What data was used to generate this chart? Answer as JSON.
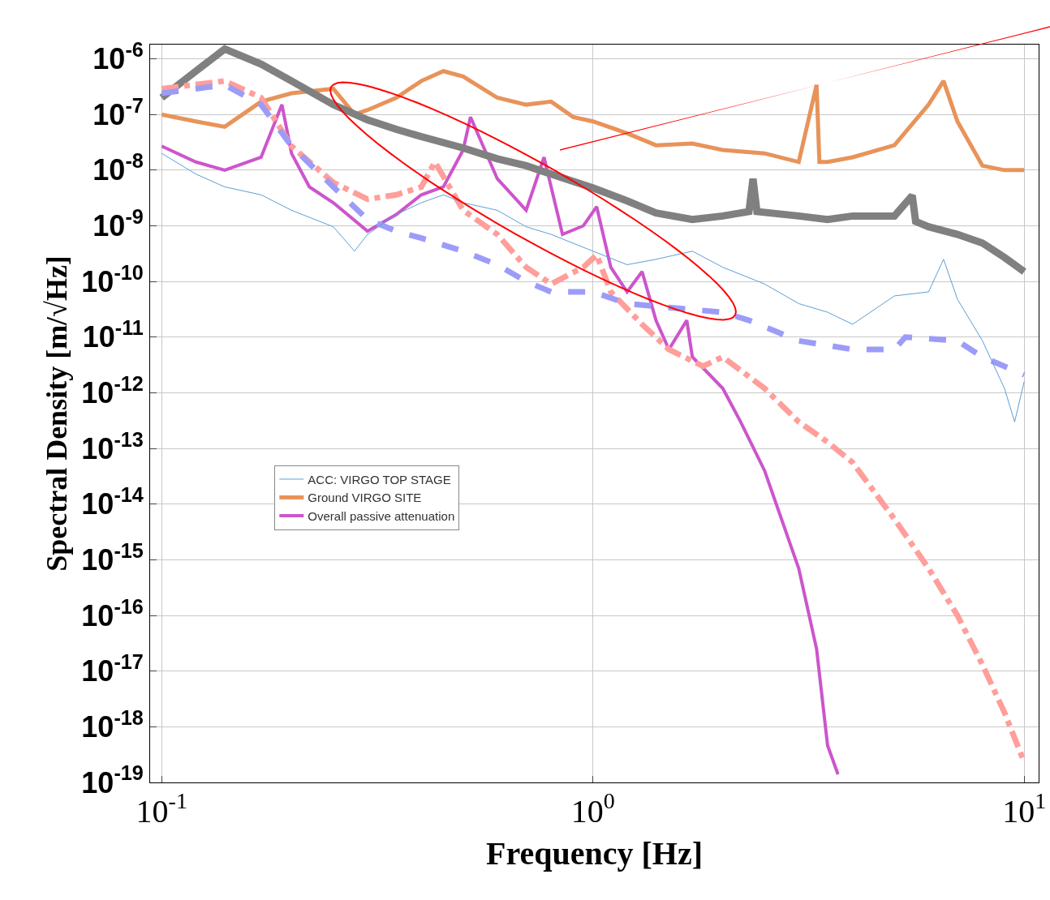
{
  "chart_data": {
    "type": "line",
    "xlabel": "Frequency [Hz]",
    "ylabel": "Spectral Density [m/√Hz]",
    "log": "xy",
    "grid": true,
    "legend": "center left",
    "xlim": [
      0.094,
      10.8
    ],
    "ylim": [
      1e-19,
      1.8e-06
    ],
    "xticks": [
      {
        "value": 0.1,
        "label": "10$^{-1}$"
      },
      {
        "value": 1,
        "label": "10$^{0}$"
      },
      {
        "value": 10,
        "label": "10$^{1}$"
      }
    ],
    "yticks": [
      {
        "value": 1e-06,
        "label": "10$^{-6}$"
      },
      {
        "value": 1e-07,
        "label": "10$^{-7}$"
      },
      {
        "value": 1e-08,
        "label": "10$^{-8}$"
      },
      {
        "value": 1e-09,
        "label": "10$^{-9}$"
      },
      {
        "value": 1e-10,
        "label": "10$^{-10}$"
      },
      {
        "value": 1e-11,
        "label": "10$^{-11}$"
      },
      {
        "value": 1e-12,
        "label": "10$^{-12}$"
      },
      {
        "value": 1e-13,
        "label": "10$^{-13}$"
      },
      {
        "value": 1e-14,
        "label": "10$^{-14}$"
      },
      {
        "value": 1e-15,
        "label": "10$^{-15}$"
      },
      {
        "value": 1e-16,
        "label": "10$^{-16}$"
      },
      {
        "value": 1e-17,
        "label": "10$^{-17}$"
      },
      {
        "value": 1e-18,
        "label": "10$^{-18}$"
      },
      {
        "value": 1e-19,
        "label": "10$^{-19}$"
      }
    ],
    "series": [
      {
        "name": "ACC: VIRGO TOP STAGE",
        "color": "#5b9fd4",
        "line_style": "solid",
        "x": [
          0.1,
          0.12,
          0.14,
          0.17,
          0.2,
          0.25,
          0.28,
          0.3,
          0.35,
          0.4,
          0.45,
          0.5,
          0.6,
          0.7,
          0.8,
          1,
          1.2,
          1.4,
          1.7,
          2,
          2.5,
          3,
          3.5,
          4,
          5,
          6,
          6.5,
          7,
          8,
          9,
          9.5,
          10
        ],
        "values": [
          2e-08,
          8.5e-09,
          5e-09,
          3.6e-09,
          1.9e-09,
          9.6e-10,
          3.5e-10,
          7e-10,
          1.6e-09,
          2.6e-09,
          3.6e-09,
          2.6e-09,
          1.9e-09,
          9.6e-10,
          7e-10,
          3.5e-10,
          2e-10,
          2.5e-10,
          3.5e-10,
          1.8e-10,
          9e-11,
          4e-11,
          2.8e-11,
          1.7e-11,
          5.5e-11,
          6.5e-11,
          2.5e-10,
          4.8e-11,
          8.6e-12,
          1.2e-12,
          3e-13,
          1.6e-12
        ]
      },
      {
        "name": "Ground VIRGO SITE",
        "color": "#e8935a",
        "line_style": "solid",
        "x": [
          0.1,
          0.12,
          0.14,
          0.17,
          0.2,
          0.25,
          0.28,
          0.3,
          0.35,
          0.4,
          0.45,
          0.5,
          0.6,
          0.7,
          0.8,
          0.9,
          1,
          1.2,
          1.4,
          1.7,
          2,
          2.5,
          3,
          3.3,
          3.35,
          3.5,
          4,
          5,
          6,
          6.5,
          7,
          8,
          9,
          10
        ],
        "values": [
          1e-07,
          7.5e-08,
          6e-08,
          1.7e-07,
          2.4e-07,
          2.9e-07,
          1e-07,
          1.2e-07,
          2e-07,
          4e-07,
          6e-07,
          4.8e-07,
          2e-07,
          1.5e-07,
          1.7e-07,
          9e-08,
          7.5e-08,
          4.6e-08,
          2.8e-08,
          3e-08,
          2.3e-08,
          2e-08,
          1.4e-08,
          3.4e-07,
          1.4e-08,
          1.4e-08,
          1.7e-08,
          2.8e-08,
          1.5e-07,
          4e-07,
          7.5e-08,
          1.2e-08,
          1e-08,
          1e-08
        ]
      },
      {
        "name": "Overall passive attenuation",
        "color": "#cc55cc",
        "line_style": "solid",
        "x": [
          0.1,
          0.12,
          0.14,
          0.17,
          0.19,
          0.2,
          0.22,
          0.25,
          0.3,
          0.35,
          0.4,
          0.45,
          0.5,
          0.52,
          0.6,
          0.7,
          0.77,
          0.85,
          0.95,
          1.02,
          1.1,
          1.2,
          1.3,
          1.4,
          1.5,
          1.65,
          1.7,
          2,
          2.2,
          2.5,
          3,
          3.3,
          3.5,
          3.7
        ],
        "values": [
          2.7e-08,
          1.4e-08,
          1e-08,
          1.7e-08,
          1.5e-07,
          2e-08,
          5e-09,
          2.6e-09,
          8e-10,
          1.6e-09,
          3.6e-09,
          5e-09,
          2.3e-08,
          9e-08,
          7e-09,
          1.9e-09,
          1.7e-08,
          7e-10,
          1e-09,
          2.2e-09,
          1.8e-10,
          6.5e-11,
          1.5e-10,
          2e-11,
          6e-12,
          2e-11,
          4.4e-12,
          1.2e-12,
          3e-13,
          4e-14,
          7e-16,
          2.5e-17,
          4.6e-19,
          1.4e-19
        ]
      },
      {
        "color": "#808080",
        "line_style": "solid",
        "x": [
          0.1,
          0.12,
          0.14,
          0.17,
          0.2,
          0.25,
          0.3,
          0.35,
          0.4,
          0.5,
          0.6,
          0.7,
          0.8,
          1,
          1.2,
          1.4,
          1.7,
          2,
          2.3,
          2.35,
          2.4,
          3,
          3.5,
          4,
          5,
          5.5,
          5.6,
          6,
          7,
          8,
          9,
          10
        ],
        "values": [
          2e-07,
          6e-07,
          1.5e-06,
          8e-07,
          4e-07,
          1.5e-07,
          8e-08,
          5.4e-08,
          4e-08,
          2.5e-08,
          1.6e-08,
          1.2e-08,
          8.5e-09,
          4.8e-09,
          2.8e-09,
          1.7e-09,
          1.3e-09,
          1.5e-09,
          1.8e-09,
          7e-09,
          1.8e-09,
          1.5e-09,
          1.3e-09,
          1.5e-09,
          1.5e-09,
          3.5e-09,
          1.2e-09,
          9.6e-10,
          7e-10,
          4.9e-10,
          2.7e-10,
          1.5e-10
        ]
      },
      {
        "color": "#ff9e9a",
        "line_style": "dashdot",
        "x": [
          0.1,
          0.14,
          0.17,
          0.2,
          0.25,
          0.3,
          0.35,
          0.4,
          0.43,
          0.5,
          0.6,
          0.7,
          0.8,
          0.95,
          1.02,
          1.1,
          1.3,
          1.5,
          1.8,
          2,
          2.5,
          3,
          3.5,
          4,
          5,
          6,
          7,
          8,
          9,
          10
        ],
        "values": [
          2.9e-07,
          4e-07,
          2e-07,
          2.7e-08,
          6e-09,
          3e-09,
          3.6e-09,
          5e-09,
          1.4e-08,
          1.9e-09,
          7e-10,
          1.8e-10,
          9e-11,
          1.8e-10,
          3e-10,
          6.5e-11,
          1.7e-11,
          6e-12,
          3e-12,
          4.4e-12,
          1.2e-12,
          3e-13,
          1.3e-13,
          5.6e-14,
          5.4e-15,
          7e-16,
          1e-16,
          1.3e-17,
          1.8e-18,
          2.3e-19
        ]
      },
      {
        "color": "#9c9cf8",
        "line_style": "dashed",
        "x": [
          0.1,
          0.14,
          0.17,
          0.2,
          0.25,
          0.3,
          0.35,
          0.4,
          0.5,
          0.6,
          0.7,
          0.8,
          1,
          1.2,
          1.5,
          2,
          2.3,
          3,
          4,
          5,
          5.3,
          7,
          8,
          10
        ],
        "values": [
          2.4e-07,
          3.4e-07,
          1.5e-07,
          2.7e-08,
          5e-09,
          1.3e-09,
          8e-10,
          6e-10,
          3.5e-10,
          2e-10,
          1e-10,
          6.5e-11,
          6.5e-11,
          4e-11,
          3.4e-11,
          2.8e-11,
          2e-11,
          8.6e-12,
          6e-12,
          6e-12,
          1e-11,
          8.6e-12,
          4.4e-12,
          2.1e-12
        ]
      }
    ]
  }
}
